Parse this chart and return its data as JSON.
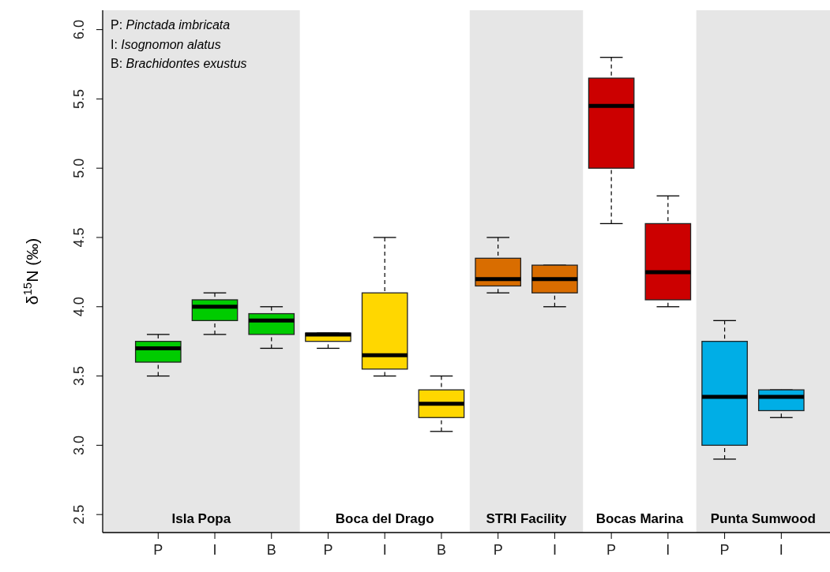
{
  "chart_data": {
    "type": "box",
    "ylabel": "δ$^{15}$N (‰)",
    "categories": [
      "P",
      "I",
      "B",
      "P",
      "I",
      "B",
      "P",
      "I",
      "P",
      "I",
      "P",
      "I"
    ],
    "ylim": [
      2.37,
      6.14
    ],
    "yticks": [
      2.5,
      {
        "value": 3,
        "label": "3.0"
      },
      3.5,
      {
        "value": 4,
        "label": "4.0"
      },
      4.5,
      {
        "value": 5,
        "label": "5.0"
      },
      5.5,
      {
        "value": 6,
        "label": "6.0"
      }
    ],
    "tick_labels": true,
    "series": [
      {
        "color": "#00cc00",
        "boxes": [
          {
            "low": 3.5,
            "q1": 3.6,
            "median": 3.7,
            "q3": 3.75,
            "high": 3.8
          },
          {
            "low": 3.8,
            "q1": 3.9,
            "median": 4.0,
            "q3": 4.05,
            "high": 4.1
          },
          {
            "low": 3.7,
            "q1": 3.8,
            "median": 3.9,
            "q3": 3.95,
            "high": 4.0
          },
          null,
          null,
          null,
          null,
          null,
          null,
          null,
          null,
          null
        ]
      },
      {
        "color": "#ffd700",
        "boxes": [
          null,
          null,
          null,
          {
            "low": 3.7,
            "q1": 3.75,
            "median": 3.8,
            "q3": 3.81,
            "high": 3.81
          },
          {
            "low": 3.5,
            "q1": 3.55,
            "median": 3.65,
            "q3": 4.1,
            "high": 4.5
          },
          {
            "low": 3.1,
            "q1": 3.2,
            "median": 3.3,
            "q3": 3.4,
            "high": 3.5
          },
          null,
          null,
          null,
          null,
          null,
          null
        ]
      },
      {
        "color": "#d96d00",
        "boxes": [
          null,
          null,
          null,
          null,
          null,
          null,
          {
            "low": 4.1,
            "q1": 4.15,
            "median": 4.2,
            "q3": 4.35,
            "high": 4.5
          },
          {
            "low": 4.0,
            "q1": 4.1,
            "median": 4.2,
            "q3": 4.3,
            "high": 4.3
          },
          null,
          null,
          null,
          null
        ]
      },
      {
        "color": "#cc0000",
        "boxes": [
          null,
          null,
          null,
          null,
          null,
          null,
          null,
          null,
          {
            "low": 4.6,
            "q1": 5.0,
            "median": 5.45,
            "q3": 5.65,
            "high": 5.8
          },
          {
            "low": 4.0,
            "q1": 4.05,
            "median": 4.25,
            "q3": 4.6,
            "high": 4.8
          },
          null,
          null
        ]
      },
      {
        "color": "#00aee6",
        "boxes": [
          null,
          null,
          null,
          null,
          null,
          null,
          null,
          null,
          null,
          null,
          {
            "low": 2.9,
            "q1": 3.0,
            "median": 3.35,
            "q3": 3.75,
            "high": 3.9
          },
          {
            "low": 3.2,
            "q1": 3.25,
            "median": 3.35,
            "q3": 3.4,
            "high": 3.4
          }
        ]
      }
    ],
    "annotations": [
      "Isla Popa",
      "Boca del Drago",
      "STRI Facility",
      "Bocas Marina",
      "Punta Sumwood",
      "P: Pinctada imbricata",
      "I: Isognomon alatus",
      "B: Brachidontes exustus"
    ]
  }
}
